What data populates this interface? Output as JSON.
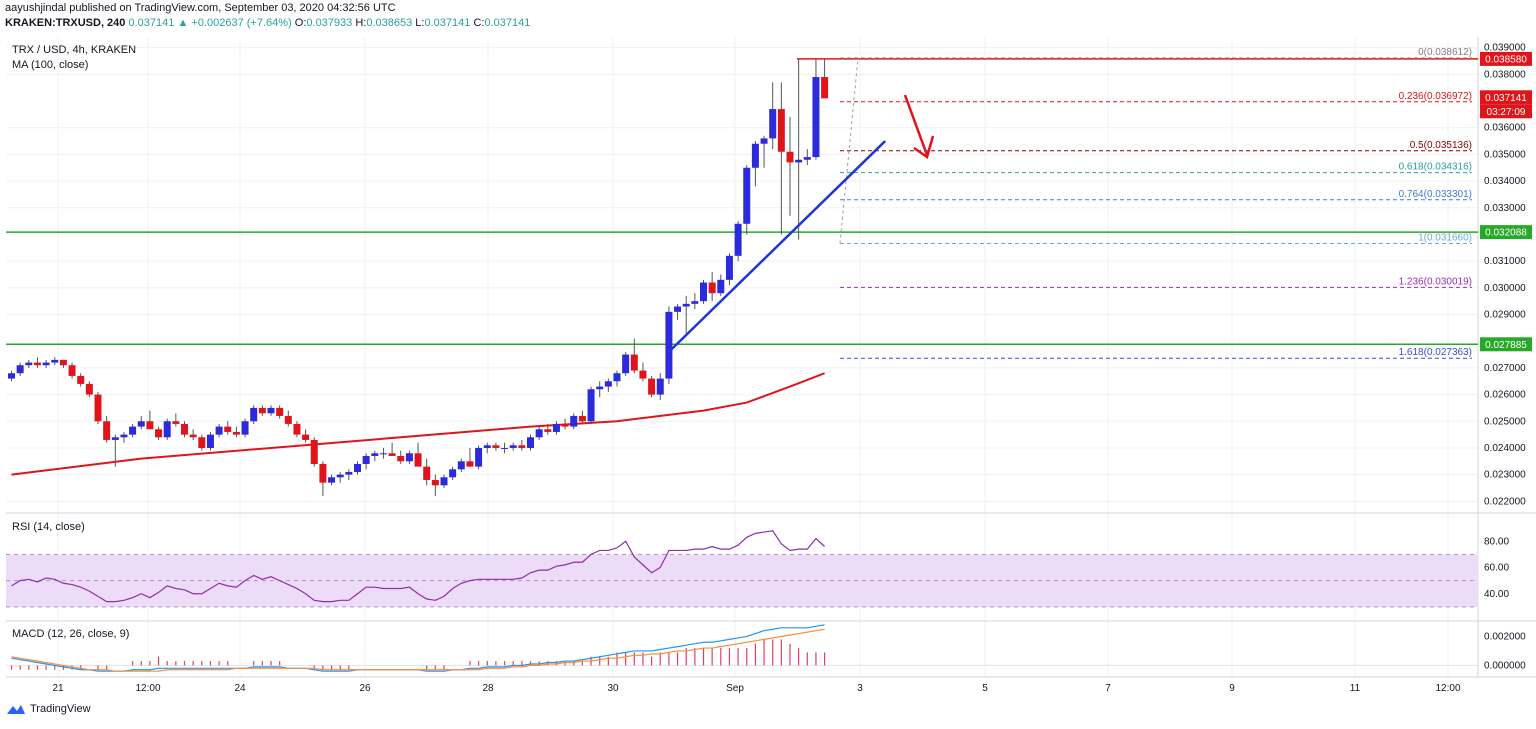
{
  "header": {
    "author": "aayushjindal",
    "published_text": "published on TradingView.com, September 03, 2020 04:32:56 UTC",
    "symbol_line": "KRAKEN:TRXUSD, 240",
    "last": "0.037141",
    "change": "+0.002637 (+7.64%)",
    "o_label": "O:",
    "o_value": "0.037933",
    "h_label": "H:",
    "h_value": "0.038653",
    "l_label": "L:",
    "l_value": "0.037141",
    "c_label": "C:",
    "c_value": "0.037141"
  },
  "main_pane": {
    "title": "TRX / USD, 4h, KRAKEN",
    "indicator": "MA (100, close)"
  },
  "rsi_pane": {
    "title": "RSI (14, close)"
  },
  "macd_pane": {
    "title": "MACD (12, 26, close, 9)"
  },
  "footer": {
    "brand": "TradingView"
  },
  "colors": {
    "up": "#2b2bdb",
    "down": "#e0141b",
    "ma": "#e0141b",
    "support": "#28a828",
    "resistance": "#e0141b",
    "trendline": "#1f35d6",
    "rsi": "#8e2fa8",
    "rsi_band": "#eddcf7",
    "macd": "#2196f3",
    "signal": "#ff8c3a",
    "hist": "#e04060"
  },
  "chart_data": {
    "type": "candlestick",
    "price_axis_ticks": [
      "0.039000",
      "0.038000",
      "0.036000",
      "0.035000",
      "0.034000",
      "0.033000",
      "0.031000",
      "0.030000",
      "0.029000",
      "0.027000",
      "0.026000",
      "0.025000",
      "0.024000",
      "0.023000",
      "0.022000"
    ],
    "price_badges": [
      {
        "label": "0.038580",
        "color": "#e0141b"
      },
      {
        "label": "0.037141",
        "color": "#e0141b"
      },
      {
        "label": "03:27:09",
        "color": "#e0141b"
      },
      {
        "label": "0.032088",
        "color": "#28a828"
      },
      {
        "label": "0.027885",
        "color": "#28a828"
      }
    ],
    "time_axis_labels": [
      "21",
      "12:00",
      "24",
      "26",
      "28",
      "30",
      "Sep",
      "3",
      "5",
      "7",
      "9",
      "11",
      "12:00"
    ],
    "rsi_ticks": [
      "80.00",
      "60.00",
      "40.00"
    ],
    "macd_ticks": [
      "0.002000",
      "0.000000"
    ],
    "horizontal_levels": [
      {
        "price": 0.03858,
        "color": "#e0141b"
      },
      {
        "price": 0.032088,
        "color": "#28a828"
      },
      {
        "price": 0.027885,
        "color": "#28a828"
      }
    ],
    "fibonacci": [
      {
        "label": "0(0.038612)",
        "price": 0.038612,
        "color": "#808080"
      },
      {
        "label": "0.236(0.036972)",
        "price": 0.036972,
        "color": "#e0141b"
      },
      {
        "label": "0.5(0.035136)",
        "price": 0.035136,
        "color": "#8b0000"
      },
      {
        "label": "0.618(0.034316)",
        "price": 0.034316,
        "color": "#2ba29a"
      },
      {
        "label": "0.764(0.033301)",
        "price": 0.033301,
        "color": "#3a7bd5"
      },
      {
        "label": "1(0.031660)",
        "price": 0.03166,
        "color": "#6fa8dc"
      },
      {
        "label": "1.236(0.030019)",
        "price": 0.030019,
        "color": "#9b30b6"
      },
      {
        "label": "1.618(0.027363)",
        "price": 0.027363,
        "color": "#3a4bd6"
      }
    ],
    "candles": [
      [
        0.0266,
        0.0269,
        0.0265,
        0.0268
      ],
      [
        0.0268,
        0.0272,
        0.0267,
        0.0271
      ],
      [
        0.0271,
        0.0273,
        0.027,
        0.0272
      ],
      [
        0.0272,
        0.0274,
        0.027,
        0.0271
      ],
      [
        0.0271,
        0.0273,
        0.027,
        0.0272
      ],
      [
        0.0272,
        0.0274,
        0.0271,
        0.0273
      ],
      [
        0.0273,
        0.0273,
        0.027,
        0.0271
      ],
      [
        0.0271,
        0.0272,
        0.0266,
        0.0267
      ],
      [
        0.0267,
        0.0268,
        0.0263,
        0.0264
      ],
      [
        0.0264,
        0.0265,
        0.0259,
        0.026
      ],
      [
        0.026,
        0.0261,
        0.0249,
        0.025
      ],
      [
        0.025,
        0.0252,
        0.0242,
        0.0243
      ],
      [
        0.0243,
        0.0245,
        0.0233,
        0.0244
      ],
      [
        0.0244,
        0.0246,
        0.0242,
        0.0245
      ],
      [
        0.0245,
        0.0249,
        0.0244,
        0.0248
      ],
      [
        0.0248,
        0.0252,
        0.0247,
        0.025
      ],
      [
        0.025,
        0.0254,
        0.0248,
        0.0247
      ],
      [
        0.0247,
        0.0248,
        0.0243,
        0.0244
      ],
      [
        0.0244,
        0.0251,
        0.0243,
        0.025
      ],
      [
        0.025,
        0.0253,
        0.0248,
        0.0249
      ],
      [
        0.0249,
        0.025,
        0.0244,
        0.0245
      ],
      [
        0.0245,
        0.0247,
        0.0243,
        0.0244
      ],
      [
        0.0244,
        0.0245,
        0.0239,
        0.024
      ],
      [
        0.024,
        0.0246,
        0.0239,
        0.0245
      ],
      [
        0.0245,
        0.0249,
        0.0244,
        0.0248
      ],
      [
        0.0248,
        0.025,
        0.0245,
        0.0246
      ],
      [
        0.0246,
        0.0248,
        0.0244,
        0.0245
      ],
      [
        0.0245,
        0.0251,
        0.0244,
        0.025
      ],
      [
        0.025,
        0.0256,
        0.0249,
        0.0255
      ],
      [
        0.0255,
        0.0256,
        0.0252,
        0.0253
      ],
      [
        0.0253,
        0.0256,
        0.0252,
        0.0255
      ],
      [
        0.0255,
        0.0256,
        0.0251,
        0.0252
      ],
      [
        0.0252,
        0.0254,
        0.0248,
        0.0249
      ],
      [
        0.0249,
        0.025,
        0.0244,
        0.0245
      ],
      [
        0.0245,
        0.0247,
        0.0242,
        0.0243
      ],
      [
        0.0243,
        0.0244,
        0.0233,
        0.0234
      ],
      [
        0.0234,
        0.0235,
        0.0222,
        0.0227
      ],
      [
        0.0227,
        0.023,
        0.0226,
        0.0229
      ],
      [
        0.0229,
        0.0231,
        0.0227,
        0.023
      ],
      [
        0.023,
        0.0232,
        0.0228,
        0.0231
      ],
      [
        0.0231,
        0.0235,
        0.023,
        0.0234
      ],
      [
        0.0234,
        0.0238,
        0.0232,
        0.0237
      ],
      [
        0.0237,
        0.0239,
        0.0235,
        0.0238
      ],
      [
        0.0238,
        0.024,
        0.0236,
        0.0238
      ],
      [
        0.0238,
        0.0242,
        0.0237,
        0.0237
      ],
      [
        0.0237,
        0.0239,
        0.0234,
        0.0235
      ],
      [
        0.0235,
        0.0239,
        0.0234,
        0.0238
      ],
      [
        0.0238,
        0.0242,
        0.0234,
        0.0233
      ],
      [
        0.0233,
        0.0236,
        0.0226,
        0.0228
      ],
      [
        0.0228,
        0.023,
        0.0222,
        0.0226
      ],
      [
        0.0226,
        0.023,
        0.0225,
        0.0229
      ],
      [
        0.0229,
        0.0233,
        0.0228,
        0.0232
      ],
      [
        0.0232,
        0.0236,
        0.0231,
        0.0235
      ],
      [
        0.0235,
        0.024,
        0.0233,
        0.0233
      ],
      [
        0.0233,
        0.0241,
        0.0232,
        0.024
      ],
      [
        0.024,
        0.0242,
        0.0238,
        0.0241
      ],
      [
        0.0241,
        0.0242,
        0.0239,
        0.024
      ],
      [
        0.024,
        0.0242,
        0.0238,
        0.024
      ],
      [
        0.024,
        0.0242,
        0.0239,
        0.0241
      ],
      [
        0.0241,
        0.0243,
        0.0239,
        0.024
      ],
      [
        0.024,
        0.0245,
        0.0239,
        0.0244
      ],
      [
        0.0244,
        0.0248,
        0.0243,
        0.0247
      ],
      [
        0.0247,
        0.0249,
        0.0245,
        0.0246
      ],
      [
        0.0246,
        0.025,
        0.0245,
        0.0249
      ],
      [
        0.0249,
        0.0251,
        0.0247,
        0.0248
      ],
      [
        0.0248,
        0.0253,
        0.0247,
        0.0252
      ],
      [
        0.0252,
        0.0254,
        0.0249,
        0.025
      ],
      [
        0.025,
        0.0263,
        0.0249,
        0.0262
      ],
      [
        0.0262,
        0.0265,
        0.0259,
        0.0263
      ],
      [
        0.0263,
        0.0266,
        0.0261,
        0.0265
      ],
      [
        0.0265,
        0.0269,
        0.0263,
        0.0268
      ],
      [
        0.0268,
        0.0276,
        0.0267,
        0.0275
      ],
      [
        0.0275,
        0.0281,
        0.0268,
        0.0269
      ],
      [
        0.0269,
        0.0272,
        0.0265,
        0.0266
      ],
      [
        0.0266,
        0.0267,
        0.0259,
        0.026
      ],
      [
        0.026,
        0.0268,
        0.0258,
        0.0266
      ],
      [
        0.0266,
        0.0293,
        0.0264,
        0.0291
      ],
      [
        0.0291,
        0.0294,
        0.0288,
        0.0293
      ],
      [
        0.0293,
        0.0297,
        0.0282,
        0.0294
      ],
      [
        0.0294,
        0.0298,
        0.0292,
        0.0295
      ],
      [
        0.0295,
        0.0303,
        0.0294,
        0.0302
      ],
      [
        0.0302,
        0.0306,
        0.0295,
        0.0298
      ],
      [
        0.0298,
        0.0305,
        0.0297,
        0.0303
      ],
      [
        0.0303,
        0.0313,
        0.0301,
        0.0312
      ],
      [
        0.0312,
        0.0325,
        0.031,
        0.0324
      ],
      [
        0.0324,
        0.0346,
        0.032,
        0.0345
      ],
      [
        0.0345,
        0.0355,
        0.0338,
        0.0354
      ],
      [
        0.0354,
        0.0357,
        0.0345,
        0.0356
      ],
      [
        0.0356,
        0.0377,
        0.0352,
        0.0367
      ],
      [
        0.0367,
        0.0377,
        0.032,
        0.0351
      ],
      [
        0.0351,
        0.0364,
        0.0327,
        0.0347
      ],
      [
        0.0347,
        0.0386,
        0.0318,
        0.0348
      ],
      [
        0.0348,
        0.0352,
        0.0346,
        0.0349
      ],
      [
        0.0349,
        0.0386,
        0.0348,
        0.0379
      ],
      [
        0.0379,
        0.0386,
        0.0371,
        0.0371
      ]
    ],
    "ma100": [
      [
        0,
        0.023
      ],
      [
        15,
        0.0236
      ],
      [
        30,
        0.024
      ],
      [
        45,
        0.0244
      ],
      [
        60,
        0.0248
      ],
      [
        70,
        0.025
      ],
      [
        80,
        0.0254
      ],
      [
        85,
        0.0257
      ],
      [
        90,
        0.0263
      ],
      [
        94,
        0.0268
      ]
    ],
    "trendline": [
      [
        76,
        0.0276
      ],
      [
        101,
        0.0355
      ]
    ],
    "rsi": [
      46,
      50,
      51,
      49,
      52,
      51,
      48,
      47,
      45,
      42,
      38,
      34,
      34,
      35,
      37,
      40,
      37,
      41,
      46,
      44,
      43,
      40,
      40,
      44,
      48,
      46,
      45,
      50,
      54,
      51,
      53,
      50,
      47,
      44,
      40,
      35,
      34,
      34,
      35,
      35,
      40,
      45,
      45,
      44,
      44,
      44,
      45,
      40,
      36,
      35,
      38,
      44,
      48,
      50,
      51,
      51,
      51,
      51,
      51,
      52,
      56,
      58,
      58,
      61,
      62,
      64,
      64,
      70,
      73,
      73,
      75,
      80,
      68,
      62,
      56,
      60,
      73,
      73,
      73,
      74,
      74,
      76,
      74,
      74,
      77,
      83,
      86,
      87,
      88,
      78,
      73,
      74,
      74,
      82,
      76
    ],
    "macd": [
      0.0005,
      0.0004,
      0.0003,
      0.0002,
      0.0001,
      0.0,
      -0.0001,
      -0.0002,
      -0.0003,
      -0.0003,
      -0.0004,
      -0.0004,
      -0.0004,
      -0.0004,
      -0.0003,
      -0.0003,
      -0.0003,
      -0.0002,
      -0.0002,
      -0.0002,
      -0.0002,
      -0.0002,
      -0.0002,
      -0.0002,
      -0.0002,
      -0.0002,
      -0.0002,
      -0.0002,
      -0.0001,
      -0.0001,
      -0.0001,
      -0.0001,
      -0.0002,
      -0.0002,
      -0.0002,
      -0.0003,
      -0.0004,
      -0.0004,
      -0.0004,
      -0.0004,
      -0.0003,
      -0.0003,
      -0.0003,
      -0.0003,
      -0.0003,
      -0.0003,
      -0.0003,
      -0.0003,
      -0.0004,
      -0.0004,
      -0.0004,
      -0.0003,
      -0.0003,
      -0.0002,
      -0.0002,
      -0.0001,
      -0.0001,
      -0.0001,
      0.0,
      0.0,
      0.0001,
      0.0001,
      0.0002,
      0.0002,
      0.0003,
      0.0003,
      0.0004,
      0.0005,
      0.0006,
      0.0007,
      0.0008,
      0.0009,
      0.001,
      0.001,
      0.001,
      0.0011,
      0.0012,
      0.0013,
      0.0014,
      0.0015,
      0.0016,
      0.0016,
      0.0017,
      0.0018,
      0.0019,
      0.002,
      0.0022,
      0.0024,
      0.0025,
      0.0026,
      0.0026,
      0.0026,
      0.0026,
      0.0027,
      0.0028
    ],
    "signal": [
      0.0006,
      0.0005,
      0.0004,
      0.0003,
      0.0002,
      0.0001,
      0.0,
      -0.0001,
      -0.0002,
      -0.0003,
      -0.0003,
      -0.0003,
      -0.0004,
      -0.0004,
      -0.0004,
      -0.0004,
      -0.0004,
      -0.0004,
      -0.0003,
      -0.0003,
      -0.0003,
      -0.0003,
      -0.0003,
      -0.0003,
      -0.0003,
      -0.0003,
      -0.0002,
      -0.0002,
      -0.0002,
      -0.0002,
      -0.0002,
      -0.0002,
      -0.0002,
      -0.0002,
      -0.0002,
      -0.0002,
      -0.0003,
      -0.0003,
      -0.0003,
      -0.0003,
      -0.0003,
      -0.0003,
      -0.0003,
      -0.0003,
      -0.0003,
      -0.0003,
      -0.0003,
      -0.0003,
      -0.0003,
      -0.0003,
      -0.0003,
      -0.0003,
      -0.0003,
      -0.0003,
      -0.0003,
      -0.0002,
      -0.0002,
      -0.0002,
      -0.0001,
      -0.0001,
      0.0,
      0.0,
      0.0001,
      0.0001,
      0.0002,
      0.0002,
      0.0003,
      0.0003,
      0.0004,
      0.0005,
      0.0005,
      0.0006,
      0.0007,
      0.0007,
      0.0008,
      0.0008,
      0.0009,
      0.001,
      0.001,
      0.0011,
      0.0012,
      0.0012,
      0.0013,
      0.0014,
      0.0015,
      0.0016,
      0.0017,
      0.0018,
      0.0019,
      0.002,
      0.0021,
      0.0022,
      0.0023,
      0.0024,
      0.0025
    ],
    "price_ylim": [
      0.0216,
      0.0394
    ],
    "rsi_ylim": [
      20,
      100
    ],
    "macd_ylim": [
      -0.0008,
      0.003
    ]
  }
}
